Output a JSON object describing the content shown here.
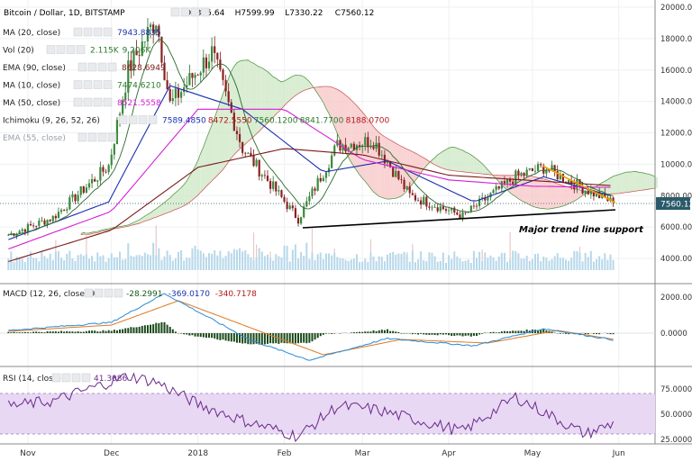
{
  "header": {
    "title": "Bitcoin / Dollar, 1D, BITSTAMP",
    "ohlc": {
      "open": "O7375.64",
      "high": "H7599.99",
      "low": "L7330.22",
      "close": "C7560.12"
    }
  },
  "indicators": [
    {
      "label": "MA (20, close)",
      "values": [
        "7943.8835"
      ],
      "color": "#1a2fb0"
    },
    {
      "label": "Vol (20)",
      "values": [
        "2.115K",
        "9.206K"
      ],
      "color": "#2a7a2a"
    },
    {
      "label": "EMA (90, close)",
      "values": [
        "8628.6949"
      ],
      "color": "#7a1a1a"
    },
    {
      "label": "MA (10, close)",
      "values": [
        "7474.6210"
      ],
      "color": "#2a7a2a"
    },
    {
      "label": "MA (50, close)",
      "values": [
        "8521.5558"
      ],
      "color": "#d61fd6"
    },
    {
      "label": "Ichimoku (9, 26, 52, 26)",
      "values": [
        "7589.4850",
        "8472.5550",
        "7560.1200",
        "8841.7700",
        "8188.0700"
      ],
      "colors": [
        "#1a2fb0",
        "#b01a1a",
        "#2a7a2a",
        "#2a7a2a",
        "#b01a1a"
      ]
    },
    {
      "label": "EMA (55, close)",
      "values": [],
      "color": "#9aa0a8"
    }
  ],
  "macd": {
    "label": "MACD (12, 26, close, 9)",
    "values": [
      "-28.2991",
      "-369.0170",
      "-340.7178"
    ],
    "colors": [
      "#1a5a1a",
      "#1a2fb0",
      "#b01a1a"
    ]
  },
  "rsi": {
    "label": "RSI (14, close)",
    "value": "41.3086",
    "color": "#6a2a8a"
  },
  "annotation": "Major trend line support",
  "last_price_badge": "7560.12",
  "chart_data": [
    {
      "type": "line",
      "title": "Bitcoin / Dollar, 1D, BITSTAMP",
      "x_ticks": [
        "Nov",
        "Dec",
        "2018",
        "Feb",
        "Mar",
        "Apr",
        "May",
        "Jun"
      ],
      "y_ticks": [
        "4000.00",
        "6000.00",
        "8000.00",
        "10000.00",
        "12000.00",
        "14000.00",
        "16000.00",
        "18000.00",
        "20000.00"
      ],
      "ylim": [
        2500,
        20500
      ],
      "series": [
        {
          "name": "Close",
          "x": [
            "Oct 25",
            "Nov 10",
            "Nov 30",
            "Dec 7",
            "Dec 17",
            "Dec 22",
            "Jan 6",
            "Jan 17",
            "Feb 6",
            "Feb 20",
            "Mar 5",
            "Mar 18",
            "Apr 6",
            "Apr 25",
            "May 5",
            "May 20",
            "May 30"
          ],
          "y": [
            5500,
            6600,
            9900,
            16000,
            19300,
            13800,
            17100,
            11000,
            6500,
            11200,
            11500,
            8000,
            6700,
            9200,
            9800,
            8400,
            7560
          ]
        },
        {
          "name": "MA (20, close)",
          "x": [
            "Oct 25",
            "Nov 30",
            "Dec 22",
            "Jan 17",
            "Feb 15",
            "Mar 10",
            "Apr 10",
            "May 5",
            "May 30"
          ],
          "y": [
            5200,
            7600,
            15000,
            13500,
            9500,
            10200,
            7600,
            9200,
            7944
          ]
        },
        {
          "name": "MA (50, close)",
          "x": [
            "Oct 25",
            "Dec 1",
            "Jan 1",
            "Feb 1",
            "Mar 1",
            "Apr 1",
            "May 1",
            "May 30"
          ],
          "y": [
            4600,
            7000,
            13500,
            13500,
            10300,
            9000,
            8600,
            8522
          ]
        },
        {
          "name": "EMA (90, close)",
          "x": [
            "Oct 25",
            "Dec 1",
            "Jan 1",
            "Feb 1",
            "Mar 1",
            "Apr 1",
            "May 30"
          ],
          "y": [
            3800,
            5800,
            9800,
            11000,
            10600,
            9300,
            8629
          ]
        }
      ]
    },
    {
      "type": "bar",
      "title": "Vol (20)",
      "note": "volume bars along bottom of the price pane; last value 2.115K, average 9.206K"
    },
    {
      "type": "line",
      "title": "MACD (12, 26, close, 9)",
      "y_ticks": [
        "2000.0000",
        "0.0000"
      ],
      "ylim": [
        -1800,
        2500
      ],
      "series": [
        {
          "name": "MACD",
          "x": [
            "Oct 25",
            "Dec 1",
            "Dec 20",
            "Jan 20",
            "Feb 10",
            "Mar 10",
            "Apr 10",
            "May 5",
            "May 30"
          ],
          "y": [
            150,
            600,
            2200,
            -400,
            -1500,
            -300,
            -700,
            250,
            -369
          ]
        },
        {
          "name": "Signal",
          "x": [
            "Oct 25",
            "Dec 1",
            "Dec 25",
            "Jan 25",
            "Feb 15",
            "Mar 15",
            "Apr 15",
            "May 10",
            "May 30"
          ],
          "y": [
            100,
            450,
            1800,
            0,
            -1200,
            -350,
            -550,
            150,
            -341
          ]
        }
      ]
    },
    {
      "type": "line",
      "title": "RSI (14, close)",
      "y_ticks": [
        "75.0000",
        "50.0000",
        "25.0000"
      ],
      "ylim": [
        20,
        100
      ],
      "series": [
        {
          "name": "RSI",
          "x": [
            "Oct 25",
            "Nov 10",
            "Dec 7",
            "Dec 17",
            "Jan 1",
            "Jan 17",
            "Feb 6",
            "Feb 20",
            "Mar 5",
            "Apr 6",
            "Apr 25",
            "May 20",
            "May 30"
          ],
          "y": [
            58,
            63,
            88,
            82,
            60,
            44,
            28,
            58,
            55,
            33,
            67,
            30,
            41
          ]
        }
      ]
    }
  ]
}
